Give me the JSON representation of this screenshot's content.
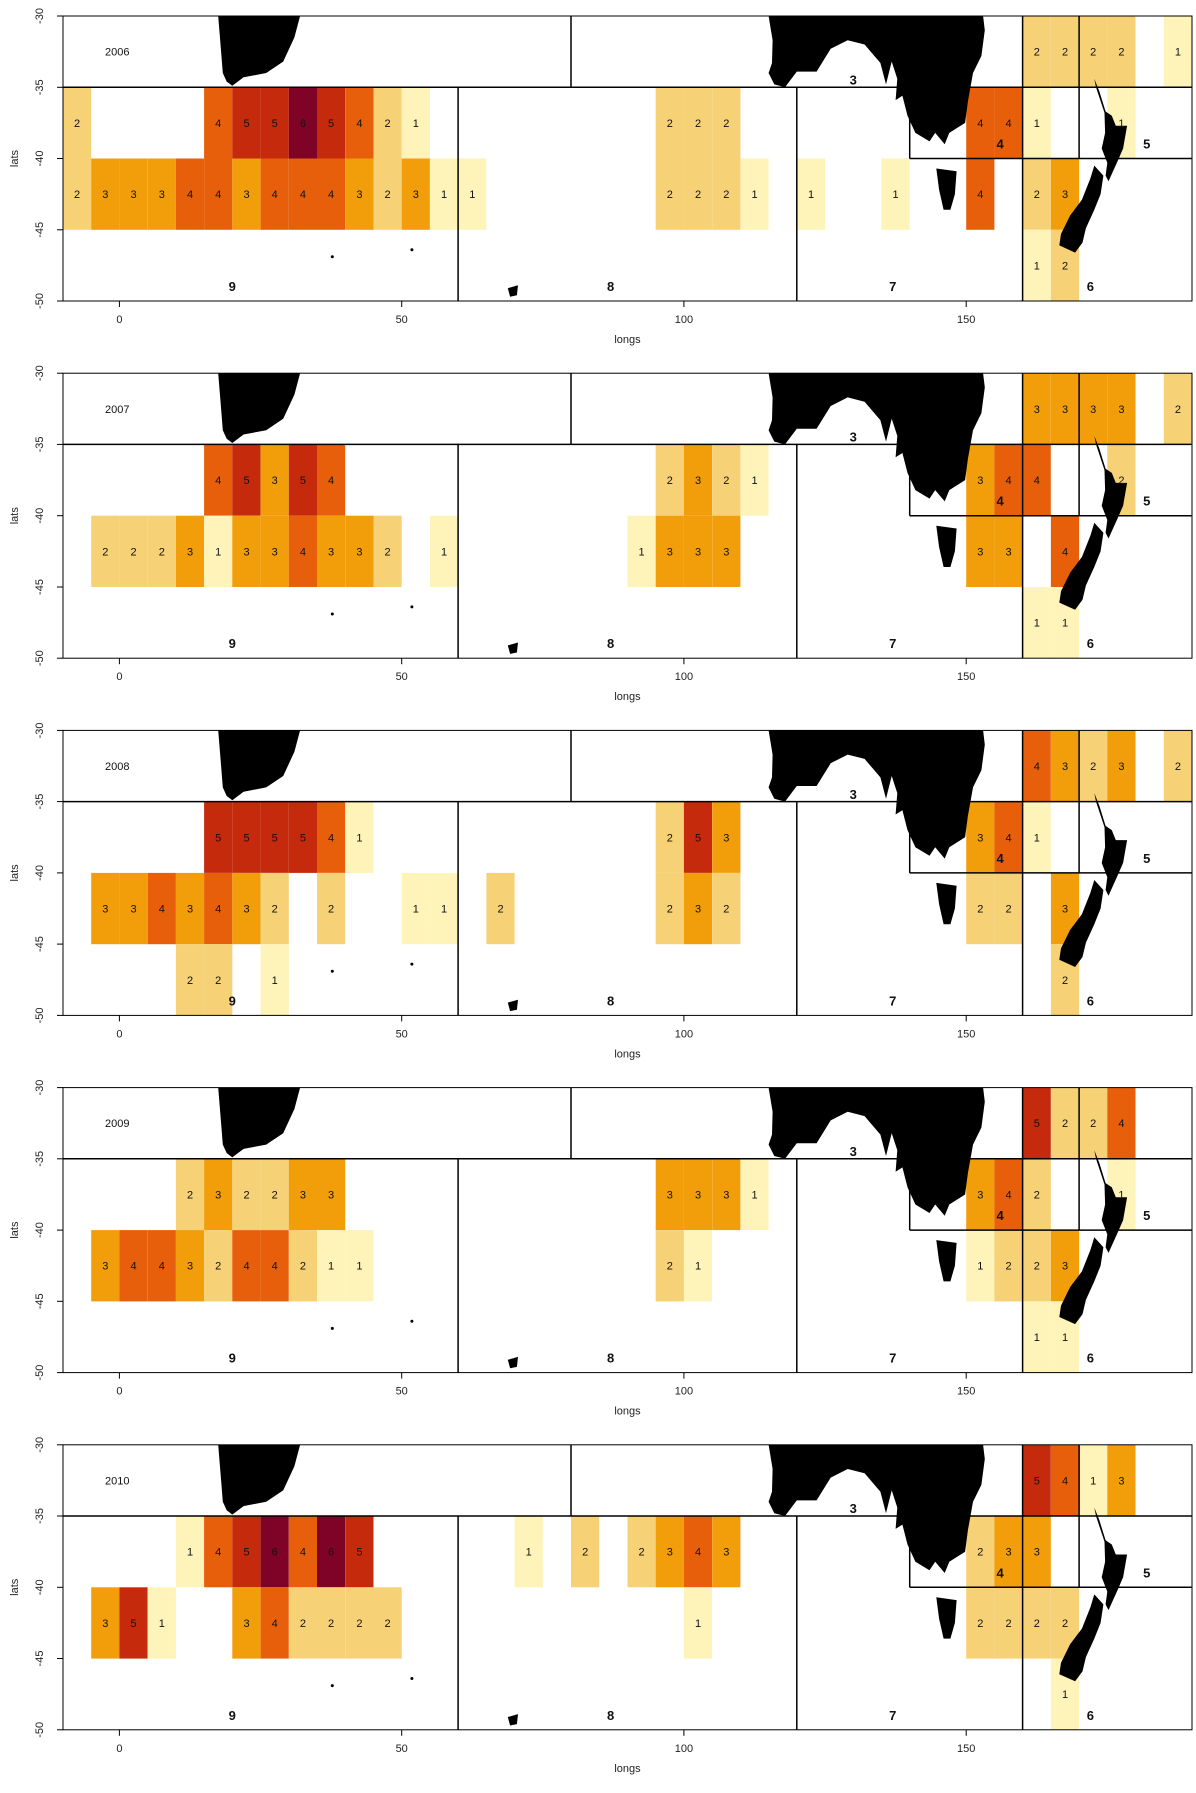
{
  "chart_data": {
    "type": "heatmap",
    "xlabel": "longs",
    "ylabel": "lats",
    "xlim": [
      -10,
      190
    ],
    "ylim": [
      -50,
      -30
    ],
    "xticks": [
      "0",
      "50",
      "100",
      "150"
    ],
    "yticks": [
      "-30",
      "-35",
      "-40",
      "-45",
      "-50"
    ],
    "cell_size": 5,
    "palette": {
      "1": "#fef3b8",
      "2": "#f6d175",
      "3": "#f29e0a",
      "4": "#e85f0b",
      "5": "#c52a0c",
      "6": "#7f0327"
    },
    "region_lines": [
      [
        [
          -10,
          -35
        ],
        [
          190,
          -35
        ]
      ],
      [
        [
          80,
          -30
        ],
        [
          80,
          -35
        ]
      ],
      [
        [
          60,
          -35
        ],
        [
          60,
          -50
        ]
      ],
      [
        [
          120,
          -35
        ],
        [
          120,
          -50
        ]
      ],
      [
        [
          160,
          -30
        ],
        [
          160,
          -50
        ]
      ],
      [
        [
          170,
          -30
        ],
        [
          170,
          -40
        ]
      ],
      [
        [
          140,
          -40
        ],
        [
          190,
          -40
        ]
      ],
      [
        [
          140,
          -35
        ],
        [
          140,
          -40
        ]
      ]
    ],
    "region_labels": [
      {
        "text": "3",
        "lon": 130,
        "lat": -34.8
      },
      {
        "text": "4",
        "lon": 156,
        "lat": -39.3
      },
      {
        "text": "5",
        "lon": 182,
        "lat": -39.3
      },
      {
        "text": "6",
        "lon": 172,
        "lat": -49.3
      },
      {
        "text": "7",
        "lon": 137,
        "lat": -49.3
      },
      {
        "text": "8",
        "lon": 87,
        "lat": -49.3
      },
      {
        "text": "9",
        "lon": 20,
        "lat": -49.3
      }
    ],
    "panels": [
      {
        "year": "2006",
        "cells": [
          [
            -10,
            -40,
            2
          ],
          [
            15,
            -40,
            4
          ],
          [
            20,
            -40,
            5
          ],
          [
            25,
            -40,
            5
          ],
          [
            30,
            -40,
            6
          ],
          [
            35,
            -40,
            5
          ],
          [
            40,
            -40,
            4
          ],
          [
            45,
            -40,
            2
          ],
          [
            50,
            -40,
            1
          ],
          [
            -10,
            -45,
            2
          ],
          [
            -5,
            -45,
            3
          ],
          [
            0,
            -45,
            3
          ],
          [
            5,
            -45,
            3
          ],
          [
            10,
            -45,
            4
          ],
          [
            15,
            -45,
            4
          ],
          [
            20,
            -45,
            3
          ],
          [
            25,
            -45,
            4
          ],
          [
            30,
            -45,
            4
          ],
          [
            35,
            -45,
            4
          ],
          [
            40,
            -45,
            3
          ],
          [
            45,
            -45,
            2
          ],
          [
            50,
            -45,
            3
          ],
          [
            55,
            -45,
            1
          ],
          [
            60,
            -45,
            1
          ],
          [
            95,
            -40,
            2
          ],
          [
            100,
            -40,
            2
          ],
          [
            105,
            -40,
            2
          ],
          [
            95,
            -45,
            2
          ],
          [
            100,
            -45,
            2
          ],
          [
            105,
            -45,
            2
          ],
          [
            110,
            -45,
            1
          ],
          [
            120,
            -45,
            1
          ],
          [
            135,
            -45,
            1
          ],
          [
            150,
            -40,
            4
          ],
          [
            155,
            -40,
            4
          ],
          [
            160,
            -40,
            1
          ],
          [
            175,
            -40,
            1
          ],
          [
            150,
            -45,
            4
          ],
          [
            160,
            -45,
            2
          ],
          [
            165,
            -45,
            3
          ],
          [
            160,
            -50,
            1
          ],
          [
            165,
            -50,
            2
          ],
          [
            160,
            -35,
            2
          ],
          [
            165,
            -35,
            2
          ],
          [
            170,
            -35,
            2
          ],
          [
            175,
            -35,
            2
          ],
          [
            185,
            -35,
            1
          ]
        ]
      },
      {
        "year": "2007",
        "cells": [
          [
            15,
            -40,
            4
          ],
          [
            20,
            -40,
            5
          ],
          [
            25,
            -40,
            3
          ],
          [
            30,
            -40,
            5
          ],
          [
            35,
            -40,
            4
          ],
          [
            -5,
            -45,
            2
          ],
          [
            0,
            -45,
            2
          ],
          [
            5,
            -45,
            2
          ],
          [
            10,
            -45,
            3
          ],
          [
            15,
            -45,
            1
          ],
          [
            20,
            -45,
            3
          ],
          [
            25,
            -45,
            3
          ],
          [
            30,
            -45,
            4
          ],
          [
            35,
            -45,
            3
          ],
          [
            40,
            -45,
            3
          ],
          [
            45,
            -45,
            2
          ],
          [
            55,
            -45,
            1
          ],
          [
            95,
            -40,
            2
          ],
          [
            100,
            -40,
            3
          ],
          [
            105,
            -40,
            2
          ],
          [
            110,
            -40,
            1
          ],
          [
            90,
            -45,
            1
          ],
          [
            95,
            -45,
            3
          ],
          [
            100,
            -45,
            3
          ],
          [
            105,
            -45,
            3
          ],
          [
            150,
            -40,
            3
          ],
          [
            155,
            -40,
            4
          ],
          [
            160,
            -40,
            4
          ],
          [
            175,
            -40,
            2
          ],
          [
            150,
            -45,
            3
          ],
          [
            155,
            -45,
            3
          ],
          [
            165,
            -45,
            4
          ],
          [
            160,
            -50,
            1
          ],
          [
            165,
            -50,
            1
          ],
          [
            160,
            -35,
            3
          ],
          [
            165,
            -35,
            3
          ],
          [
            170,
            -35,
            3
          ],
          [
            175,
            -35,
            3
          ],
          [
            185,
            -35,
            2
          ]
        ]
      },
      {
        "year": "2008",
        "cells": [
          [
            15,
            -40,
            5
          ],
          [
            20,
            -40,
            5
          ],
          [
            25,
            -40,
            5
          ],
          [
            30,
            -40,
            5
          ],
          [
            35,
            -40,
            4
          ],
          [
            40,
            -40,
            1
          ],
          [
            -5,
            -45,
            3
          ],
          [
            0,
            -45,
            3
          ],
          [
            5,
            -45,
            4
          ],
          [
            10,
            -45,
            3
          ],
          [
            15,
            -45,
            4
          ],
          [
            20,
            -45,
            3
          ],
          [
            25,
            -45,
            2
          ],
          [
            35,
            -45,
            2
          ],
          [
            50,
            -45,
            1
          ],
          [
            55,
            -45,
            1
          ],
          [
            65,
            -45,
            2
          ],
          [
            10,
            -50,
            2
          ],
          [
            15,
            -50,
            2
          ],
          [
            25,
            -50,
            1
          ],
          [
            95,
            -40,
            2
          ],
          [
            100,
            -40,
            5
          ],
          [
            105,
            -40,
            3
          ],
          [
            95,
            -45,
            2
          ],
          [
            100,
            -45,
            3
          ],
          [
            105,
            -45,
            2
          ],
          [
            150,
            -40,
            3
          ],
          [
            155,
            -40,
            4
          ],
          [
            160,
            -40,
            1
          ],
          [
            150,
            -45,
            2
          ],
          [
            155,
            -45,
            2
          ],
          [
            165,
            -45,
            3
          ],
          [
            165,
            -50,
            2
          ],
          [
            160,
            -35,
            4
          ],
          [
            165,
            -35,
            3
          ],
          [
            170,
            -35,
            2
          ],
          [
            175,
            -35,
            3
          ],
          [
            185,
            -35,
            2
          ]
        ]
      },
      {
        "year": "2009",
        "cells": [
          [
            10,
            -40,
            2
          ],
          [
            15,
            -40,
            3
          ],
          [
            20,
            -40,
            2
          ],
          [
            25,
            -40,
            2
          ],
          [
            30,
            -40,
            3
          ],
          [
            35,
            -40,
            3
          ],
          [
            -5,
            -45,
            3
          ],
          [
            0,
            -45,
            4
          ],
          [
            5,
            -45,
            4
          ],
          [
            10,
            -45,
            3
          ],
          [
            15,
            -45,
            2
          ],
          [
            20,
            -45,
            4
          ],
          [
            25,
            -45,
            4
          ],
          [
            30,
            -45,
            2
          ],
          [
            35,
            -45,
            1
          ],
          [
            40,
            -45,
            1
          ],
          [
            95,
            -40,
            3
          ],
          [
            100,
            -40,
            3
          ],
          [
            105,
            -40,
            3
          ],
          [
            110,
            -40,
            1
          ],
          [
            95,
            -45,
            2
          ],
          [
            100,
            -45,
            1
          ],
          [
            150,
            -40,
            3
          ],
          [
            155,
            -40,
            4
          ],
          [
            160,
            -40,
            2
          ],
          [
            175,
            -40,
            1
          ],
          [
            150,
            -45,
            1
          ],
          [
            155,
            -45,
            2
          ],
          [
            160,
            -45,
            2
          ],
          [
            165,
            -45,
            3
          ],
          [
            160,
            -50,
            1
          ],
          [
            165,
            -50,
            1
          ],
          [
            160,
            -35,
            5
          ],
          [
            165,
            -35,
            2
          ],
          [
            170,
            -35,
            2
          ],
          [
            175,
            -35,
            4
          ]
        ]
      },
      {
        "year": "2010",
        "cells": [
          [
            10,
            -40,
            1
          ],
          [
            15,
            -40,
            4
          ],
          [
            20,
            -40,
            5
          ],
          [
            25,
            -40,
            6
          ],
          [
            30,
            -40,
            4
          ],
          [
            35,
            -40,
            6
          ],
          [
            40,
            -40,
            5
          ],
          [
            -5,
            -45,
            3
          ],
          [
            0,
            -45,
            5
          ],
          [
            5,
            -45,
            1
          ],
          [
            20,
            -45,
            3
          ],
          [
            25,
            -45,
            4
          ],
          [
            30,
            -45,
            2
          ],
          [
            35,
            -45,
            2
          ],
          [
            40,
            -45,
            2
          ],
          [
            45,
            -45,
            2
          ],
          [
            70,
            -40,
            1
          ],
          [
            80,
            -40,
            2
          ],
          [
            90,
            -40,
            2
          ],
          [
            95,
            -40,
            3
          ],
          [
            100,
            -40,
            4
          ],
          [
            105,
            -40,
            3
          ],
          [
            100,
            -45,
            1
          ],
          [
            150,
            -40,
            2
          ],
          [
            155,
            -40,
            3
          ],
          [
            160,
            -40,
            3
          ],
          [
            150,
            -45,
            2
          ],
          [
            155,
            -45,
            2
          ],
          [
            160,
            -45,
            2
          ],
          [
            165,
            -45,
            2
          ],
          [
            165,
            -50,
            1
          ],
          [
            160,
            -35,
            5
          ],
          [
            165,
            -35,
            4
          ],
          [
            170,
            -35,
            1
          ],
          [
            175,
            -35,
            3
          ]
        ]
      }
    ]
  }
}
